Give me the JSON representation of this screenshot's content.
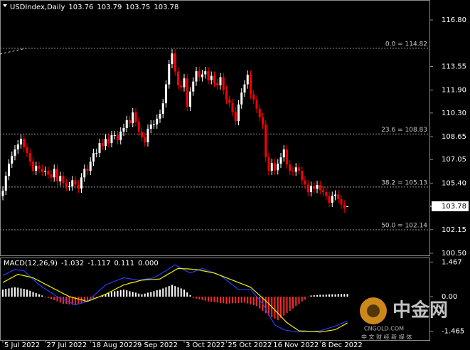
{
  "chart_data": [
    {
      "type": "candlestick",
      "title": "USDIndex,Daily",
      "up_color": "#ffffff",
      "down_color": "#ff0000",
      "ylim": [
        100.3,
        117.5
      ],
      "yticks": [
        {
          "value": 116.8,
          "label": "116.80"
        },
        113.55,
        {
          "value": 111.9,
          "label": "111.90"
        },
        {
          "value": 110.3,
          "label": "110.30"
        },
        108.65,
        107.05,
        {
          "value": 105.4,
          "label": "105.40"
        },
        102.15,
        {
          "value": 100.5,
          "label": "100.50"
        }
      ],
      "fib_levels": [
        {
          "label": "0.0 = 114.82",
          "value": 114.82
        },
        {
          "label": "23.6 = 108.83",
          "value": 108.83
        },
        {
          "label": "38.2 = 105.13",
          "value": 105.13
        },
        {
          "label": "50.0 = 102.14",
          "value": 102.14
        }
      ],
      "categories": [
        "5 Jul 2022",
        null,
        null,
        null,
        null,
        null,
        null,
        null,
        null,
        null,
        null,
        null,
        null,
        null,
        "27 Jul 2022",
        null,
        null,
        null,
        null,
        null,
        null,
        null,
        null,
        null,
        null,
        null,
        null,
        null,
        null,
        "18 Aug 2022",
        null,
        null,
        null,
        null,
        null,
        null,
        null,
        null,
        null,
        null,
        null,
        null,
        null,
        null,
        "9 Sep 2022",
        null,
        null,
        null,
        null,
        null,
        null,
        null,
        null,
        null,
        null,
        null,
        null,
        null,
        null,
        null,
        "3 Oct 2022",
        null,
        null,
        null,
        null,
        null,
        null,
        null,
        null,
        null,
        null,
        null,
        null,
        null,
        "25 Oct 2022",
        null,
        null,
        null,
        null,
        null,
        null,
        null,
        null,
        null,
        null,
        null,
        null,
        null,
        null,
        "16 Nov 2022",
        null,
        null,
        null,
        null,
        null,
        null,
        null,
        null,
        null,
        null,
        null,
        null,
        null,
        null,
        null,
        "8 Dec 2022",
        null,
        null,
        null,
        null,
        null,
        null,
        null,
        null,
        null
      ],
      "ohlc": [
        [
          104.5,
          105.17,
          104.2,
          104.87
        ],
        [
          104.87,
          106.2,
          104.57,
          105.9
        ],
        [
          105.9,
          107.06,
          105.6,
          106.76
        ],
        [
          106.76,
          107.6,
          106.46,
          107.3
        ],
        [
          107.3,
          108.05,
          107.0,
          107.75
        ],
        [
          107.75,
          108.4,
          107.45,
          108.1
        ],
        [
          108.1,
          108.8,
          107.8,
          108.5
        ],
        [
          108.5,
          108.8,
          107.6,
          107.9
        ],
        [
          107.9,
          108.2,
          107.21,
          107.51
        ],
        [
          107.51,
          107.81,
          106.6,
          106.9
        ],
        [
          106.9,
          107.2,
          105.96,
          106.26
        ],
        [
          106.26,
          106.9,
          105.96,
          106.6
        ],
        [
          106.6,
          106.9,
          106.1,
          106.4
        ],
        [
          106.4,
          106.7,
          105.9,
          106.2
        ],
        [
          106.2,
          106.56,
          105.9,
          106.26
        ],
        [
          106.26,
          106.56,
          105.7,
          106.0
        ],
        [
          106.0,
          106.3,
          105.5,
          105.8
        ],
        [
          105.8,
          106.7,
          105.5,
          106.4
        ],
        [
          106.4,
          106.7,
          105.22,
          105.52
        ],
        [
          105.52,
          106.2,
          105.22,
          105.9
        ],
        [
          105.9,
          106.2,
          105.1,
          105.4
        ],
        [
          105.4,
          105.7,
          104.87,
          105.17
        ],
        [
          105.17,
          105.47,
          104.87,
          105.17
        ],
        [
          105.17,
          105.9,
          104.87,
          105.6
        ],
        [
          105.6,
          105.9,
          105.0,
          105.3
        ],
        [
          105.3,
          105.6,
          104.72,
          105.02
        ],
        [
          105.02,
          106.1,
          104.72,
          105.8
        ],
        [
          105.8,
          106.7,
          105.5,
          106.4
        ],
        [
          106.4,
          106.7,
          105.96,
          106.26
        ],
        [
          106.26,
          107.2,
          105.96,
          106.9
        ],
        [
          106.9,
          107.8,
          106.6,
          107.5
        ],
        [
          107.5,
          107.81,
          107.2,
          107.51
        ],
        [
          107.51,
          108.5,
          107.21,
          108.2
        ],
        [
          108.2,
          108.5,
          107.7,
          108.0
        ],
        [
          108.0,
          108.8,
          107.7,
          108.5
        ],
        [
          108.5,
          108.8,
          107.9,
          108.2
        ],
        [
          108.2,
          109.05,
          107.9,
          108.75
        ],
        [
          108.75,
          109.05,
          108.45,
          108.75
        ],
        [
          108.75,
          109.05,
          108.1,
          108.4
        ],
        [
          108.4,
          109.3,
          108.1,
          109.0
        ],
        [
          109.0,
          109.55,
          108.7,
          109.25
        ],
        [
          109.25,
          110.1,
          108.95,
          109.8
        ],
        [
          109.8,
          110.1,
          109.3,
          109.6
        ],
        [
          109.6,
          110.64,
          109.3,
          110.34
        ],
        [
          110.34,
          110.64,
          109.4,
          109.7
        ],
        [
          109.7,
          110.0,
          108.69,
          108.99
        ],
        [
          108.99,
          109.29,
          108.3,
          108.6
        ],
        [
          108.6,
          108.9,
          107.95,
          108.25
        ],
        [
          108.25,
          109.5,
          107.95,
          109.2
        ],
        [
          109.2,
          109.79,
          108.9,
          109.49
        ],
        [
          109.49,
          109.8,
          109.19,
          109.5
        ],
        [
          109.5,
          110.2,
          109.2,
          109.9
        ],
        [
          109.9,
          110.54,
          109.6,
          110.24
        ],
        [
          110.24,
          111.28,
          109.94,
          110.98
        ],
        [
          110.98,
          112.6,
          110.68,
          112.3
        ],
        [
          112.3,
          114.02,
          112.0,
          113.72
        ],
        [
          113.72,
          114.76,
          113.42,
          114.46
        ],
        [
          114.46,
          114.76,
          112.9,
          113.2
        ],
        [
          113.2,
          113.5,
          111.93,
          112.23
        ],
        [
          112.23,
          112.53,
          111.8,
          112.1
        ],
        [
          112.1,
          113.02,
          111.8,
          112.72
        ],
        [
          112.72,
          113.02,
          110.44,
          110.74
        ],
        [
          110.74,
          112.1,
          110.44,
          111.8
        ],
        [
          111.8,
          112.8,
          111.5,
          112.5
        ],
        [
          112.5,
          113.52,
          112.2,
          113.22
        ],
        [
          113.22,
          113.52,
          112.5,
          112.8
        ],
        [
          112.8,
          113.3,
          112.5,
          113.0
        ],
        [
          113.0,
          113.52,
          112.7,
          113.22
        ],
        [
          113.22,
          113.52,
          112.3,
          112.6
        ],
        [
          112.6,
          113.2,
          112.3,
          112.9
        ],
        [
          112.9,
          113.2,
          112.1,
          112.4
        ],
        [
          112.4,
          112.7,
          111.93,
          112.23
        ],
        [
          112.23,
          113.1,
          111.93,
          112.8
        ],
        [
          112.8,
          113.1,
          111.6,
          111.9
        ],
        [
          111.9,
          112.2,
          110.93,
          111.23
        ],
        [
          111.23,
          111.53,
          110.7,
          111.0
        ],
        [
          111.0,
          111.3,
          110.1,
          110.4
        ],
        [
          110.4,
          110.7,
          109.44,
          109.74
        ],
        [
          109.74,
          111.2,
          109.44,
          110.9
        ],
        [
          110.9,
          112.03,
          110.6,
          111.73
        ],
        [
          111.73,
          112.6,
          111.43,
          112.3
        ],
        [
          112.3,
          113.27,
          112.0,
          112.97
        ],
        [
          112.97,
          113.27,
          111.3,
          111.6
        ],
        [
          111.6,
          111.9,
          110.93,
          111.23
        ],
        [
          111.23,
          111.53,
          110.3,
          110.6
        ],
        [
          110.6,
          110.9,
          109.7,
          110.0
        ],
        [
          110.0,
          110.3,
          109.19,
          109.49
        ],
        [
          109.49,
          109.79,
          106.9,
          107.2
        ],
        [
          107.2,
          107.5,
          105.96,
          106.26
        ],
        [
          106.26,
          107.1,
          105.96,
          106.8
        ],
        [
          106.8,
          107.1,
          106.0,
          106.3
        ],
        [
          106.3,
          107.06,
          106.0,
          106.76
        ],
        [
          106.76,
          107.5,
          106.46,
          107.2
        ],
        [
          107.2,
          108.05,
          106.9,
          107.75
        ],
        [
          107.75,
          108.05,
          106.4,
          106.7
        ],
        [
          106.7,
          107.0,
          105.96,
          106.26
        ],
        [
          106.26,
          106.56,
          105.9,
          106.2
        ],
        [
          106.2,
          106.8,
          105.9,
          106.5
        ],
        [
          106.5,
          106.8,
          105.96,
          106.26
        ],
        [
          106.26,
          106.56,
          105.3,
          105.6
        ],
        [
          105.6,
          105.9,
          105.0,
          105.3
        ],
        [
          105.3,
          105.6,
          104.47,
          104.77
        ],
        [
          104.77,
          105.5,
          104.47,
          105.2
        ],
        [
          105.2,
          105.5,
          104.7,
          105.0
        ],
        [
          105.0,
          105.57,
          104.7,
          105.27
        ],
        [
          105.27,
          105.57,
          104.6,
          104.9
        ],
        [
          104.9,
          105.2,
          104.47,
          104.77
        ],
        [
          104.77,
          105.07,
          104.2,
          104.5
        ],
        [
          104.5,
          104.8,
          103.73,
          104.03
        ],
        [
          104.03,
          104.8,
          103.73,
          104.5
        ],
        [
          104.5,
          104.9,
          104.2,
          104.6
        ],
        [
          104.6,
          104.9,
          103.98,
          104.28
        ],
        [
          104.28,
          104.58,
          103.6,
          103.9
        ],
        [
          103.9,
          104.2,
          103.33,
          103.63
        ],
        [
          103.76,
          103.79,
          103.75,
          103.78
        ]
      ]
    },
    {
      "type": "macd",
      "title": "MACD(12,26,9)",
      "ylim": [
        -1.84,
        1.63
      ],
      "yticks": [
        1.467,
        {
          "value": 0,
          "label": "0.00"
        },
        -1.465
      ],
      "readout_extra": {
        "value": 0,
        "label": "0.000"
      },
      "histogram": {
        "up_color": "#ffffff",
        "down_color": "#ff2a2a",
        "values": [
          0.3,
          0.33,
          0.35,
          0.38,
          0.4,
          0.38,
          0.35,
          0.33,
          0.3,
          0.25,
          0.2,
          0.15,
          0.1,
          0.05,
          0.0,
          -0.05,
          -0.1,
          -0.15,
          -0.2,
          -0.25,
          -0.3,
          -0.31,
          -0.33,
          -0.34,
          -0.35,
          -0.31,
          -0.28,
          -0.24,
          -0.2,
          -0.15,
          -0.1,
          -0.05,
          0.0,
          0.05,
          0.1,
          0.15,
          0.2,
          0.23,
          0.25,
          0.28,
          0.3,
          0.27,
          0.23,
          0.2,
          0.17,
          0.13,
          0.1,
          0.13,
          0.17,
          0.2,
          0.23,
          0.27,
          0.3,
          0.35,
          0.4,
          0.45,
          0.5,
          0.45,
          0.4,
          0.35,
          0.3,
          0.18,
          0.07,
          -0.05,
          -0.08,
          -0.11,
          -0.14,
          -0.17,
          -0.2,
          -0.22,
          -0.23,
          -0.25,
          -0.27,
          -0.28,
          -0.3,
          -0.29,
          -0.28,
          -0.28,
          -0.27,
          -0.26,
          -0.25,
          -0.29,
          -0.33,
          -0.36,
          -0.4,
          -0.5,
          -0.6,
          -0.7,
          -0.8,
          -0.87,
          -0.93,
          -1.0,
          -0.9,
          -0.8,
          -0.7,
          -0.6,
          -0.5,
          -0.4,
          -0.3,
          -0.2,
          -0.12,
          -0.03,
          0.05,
          0.06,
          0.07,
          0.08,
          0.08,
          0.09,
          0.1,
          0.1,
          0.1,
          0.11,
          0.11,
          0.11,
          0.111
        ]
      },
      "series": [
        {
          "color": "#2040ff",
          "values": [
            0.9,
            0.96,
            1.03,
            1.09,
            1.15,
            1.13,
            1.12,
            1.1,
            0.98,
            0.86,
            0.74,
            0.62,
            0.5,
            0.42,
            0.33,
            0.25,
            0.17,
            0.08,
            0.0,
            -0.06,
            -0.12,
            -0.18,
            -0.23,
            -0.29,
            -0.35,
            -0.31,
            -0.28,
            -0.24,
            -0.2,
            -0.08,
            0.03,
            0.15,
            0.27,
            0.38,
            0.5,
            0.55,
            0.6,
            0.65,
            0.7,
            0.75,
            0.8,
            0.78,
            0.76,
            0.74,
            0.72,
            0.7,
            0.72,
            0.74,
            0.76,
            0.78,
            0.8,
            0.88,
            0.95,
            1.03,
            1.1,
            1.18,
            1.27,
            1.35,
            1.28,
            1.21,
            1.14,
            1.07,
            1.0,
            1.05,
            1.1,
            1.15,
            1.2,
            1.15,
            1.1,
            1.05,
            1.0,
            0.95,
            0.9,
            0.8,
            0.7,
            0.6,
            0.5,
            0.4,
            0.3,
            0.3,
            0.3,
            0.3,
            0.3,
            0.15,
            0.0,
            -0.15,
            -0.3,
            -0.53,
            -0.75,
            -0.98,
            -1.2,
            -1.27,
            -1.33,
            -1.4,
            -1.43,
            -1.45,
            -1.48,
            -1.5,
            -1.49,
            -1.49,
            -1.48,
            -1.48,
            -1.47,
            -1.46,
            -1.46,
            -1.45,
            -1.41,
            -1.37,
            -1.33,
            -1.29,
            -1.25,
            -1.19,
            -1.14,
            -1.08,
            -1.032
          ]
        },
        {
          "color": "#f0f000",
          "values": [
            0.6,
            0.67,
            0.74,
            0.81,
            0.88,
            0.95,
            0.92,
            0.89,
            0.86,
            0.83,
            0.8,
            0.73,
            0.67,
            0.6,
            0.53,
            0.47,
            0.4,
            0.33,
            0.27,
            0.2,
            0.13,
            0.07,
            0.0,
            -0.03,
            -0.07,
            -0.1,
            -0.13,
            -0.17,
            -0.2,
            -0.15,
            -0.1,
            -0.05,
            0.0,
            0.05,
            0.1,
            0.17,
            0.23,
            0.3,
            0.37,
            0.43,
            0.5,
            0.53,
            0.57,
            0.6,
            0.63,
            0.67,
            0.7,
            0.71,
            0.72,
            0.73,
            0.73,
            0.74,
            0.75,
            0.83,
            0.9,
            0.98,
            1.05,
            1.13,
            1.2,
            1.19,
            1.18,
            1.18,
            1.17,
            1.16,
            1.15,
            1.13,
            1.1,
            1.08,
            1.05,
            1.03,
            1.0,
            0.95,
            0.9,
            0.85,
            0.8,
            0.75,
            0.7,
            0.65,
            0.6,
            0.55,
            0.5,
            0.45,
            0.4,
            0.28,
            0.17,
            0.05,
            -0.07,
            -0.18,
            -0.3,
            -0.43,
            -0.57,
            -0.7,
            -0.83,
            -0.97,
            -1.1,
            -1.19,
            -1.28,
            -1.36,
            -1.45,
            -1.46,
            -1.46,
            -1.47,
            -1.47,
            -1.48,
            -1.49,
            -1.5,
            -1.48,
            -1.46,
            -1.44,
            -1.42,
            -1.4,
            -1.33,
            -1.26,
            -1.19,
            -1.117
          ]
        }
      ]
    }
  ],
  "watermark": {
    "name": "中金网",
    "url": "CNGOLD.COM",
    "tagline": "中 文 财 经 新 媒 体"
  }
}
